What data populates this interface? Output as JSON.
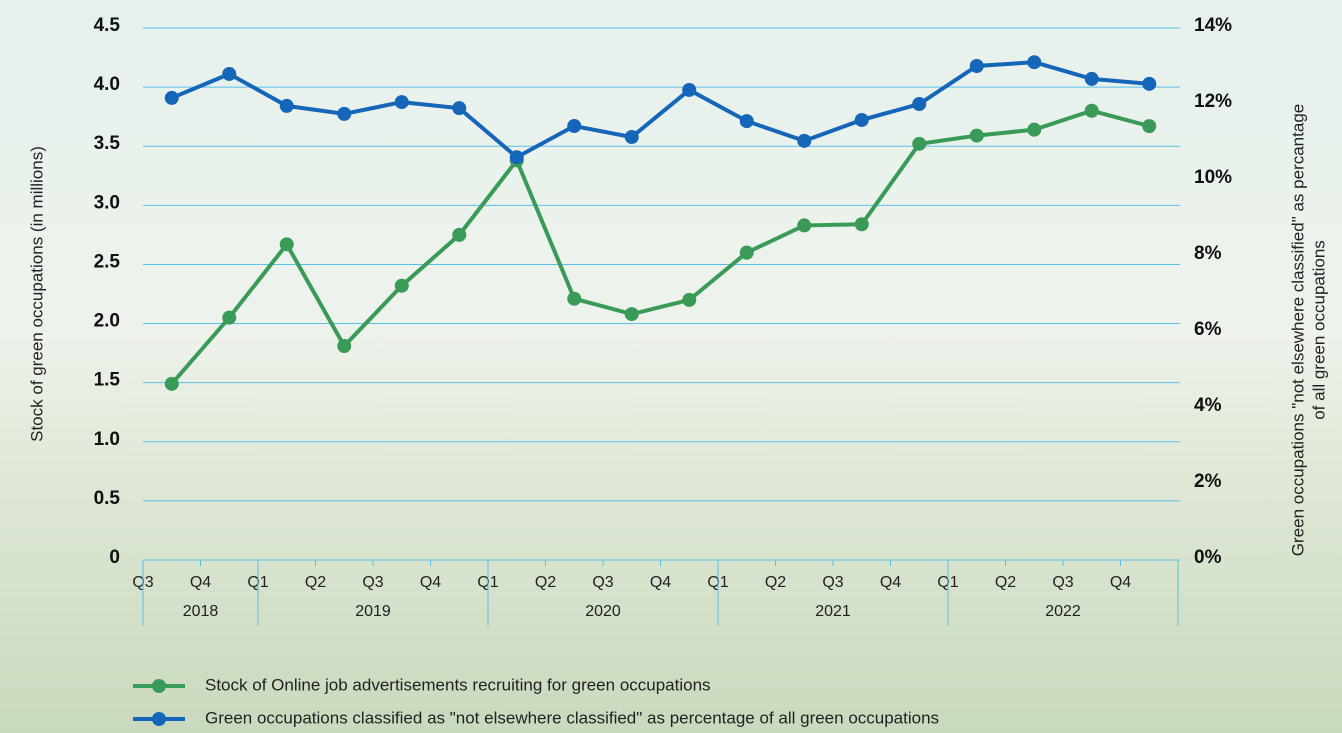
{
  "chart_data": {
    "type": "line",
    "y_label": "Stock of green occupations (in millions)",
    "y2_label": [
      "Green occupations \"not elsewhere classified\" as percantage",
      "of all green occupations"
    ],
    "categories": [
      "Q3",
      "Q4",
      "Q1",
      "Q2",
      "Q3",
      "Q4",
      "Q1",
      "Q2",
      "Q3",
      "Q4",
      "Q1",
      "Q2",
      "Q3",
      "Q4",
      "Q1",
      "Q2",
      "Q3",
      "Q4"
    ],
    "years": [
      "2018",
      "2018",
      "2019",
      "2019",
      "2019",
      "2019",
      "2020",
      "2020",
      "2020",
      "2020",
      "2021",
      "2021",
      "2021",
      "2021",
      "2022",
      "2022",
      "2022",
      "2022"
    ],
    "series": [
      {
        "name": "Stock of Online job advertisements recruiting for green occupations",
        "color": "#3a9a57",
        "values": [
          1.49,
          2.05,
          2.67,
          1.81,
          2.32,
          2.75,
          3.38,
          2.21,
          2.08,
          2.2,
          2.6,
          2.83,
          2.84,
          3.52,
          3.59,
          3.64,
          3.8,
          3.67
        ]
      },
      {
        "name": "Green occupations classified as \"not elsewhere classified\" as percentage of all green occupations",
        "color": "#1565b8",
        "axis": "y2",
        "values": [
          12.16,
          12.79,
          11.95,
          11.74,
          12.05,
          11.89,
          10.6,
          11.42,
          11.13,
          12.37,
          11.55,
          11.03,
          11.58,
          12.0,
          13.0,
          13.1,
          12.66,
          12.53
        ]
      }
    ],
    "ylim": [
      0,
      4.5
    ],
    "yticks": [
      0,
      0.5,
      {
        "value": 1,
        "label": "1.0"
      },
      1.5,
      {
        "value": 2,
        "label": "2.0"
      },
      2.5,
      {
        "value": 3,
        "label": "3.0"
      },
      3.5,
      {
        "value": 4,
        "label": "4.0"
      },
      4.5
    ],
    "y2lim": [
      0,
      14
    ],
    "y2ticks": [
      {
        "value": 0,
        "label": "0%"
      },
      {
        "value": 2,
        "label": "2%"
      },
      {
        "value": 4,
        "label": "4%"
      },
      {
        "value": 6,
        "label": "6%"
      },
      {
        "value": 8,
        "label": "8%"
      },
      {
        "value": 10,
        "label": "10%"
      },
      {
        "value": 12,
        "label": "12%"
      },
      {
        "value": 14,
        "label": "14%"
      }
    ],
    "grid": true,
    "grid_color": "#5bc0e8"
  }
}
